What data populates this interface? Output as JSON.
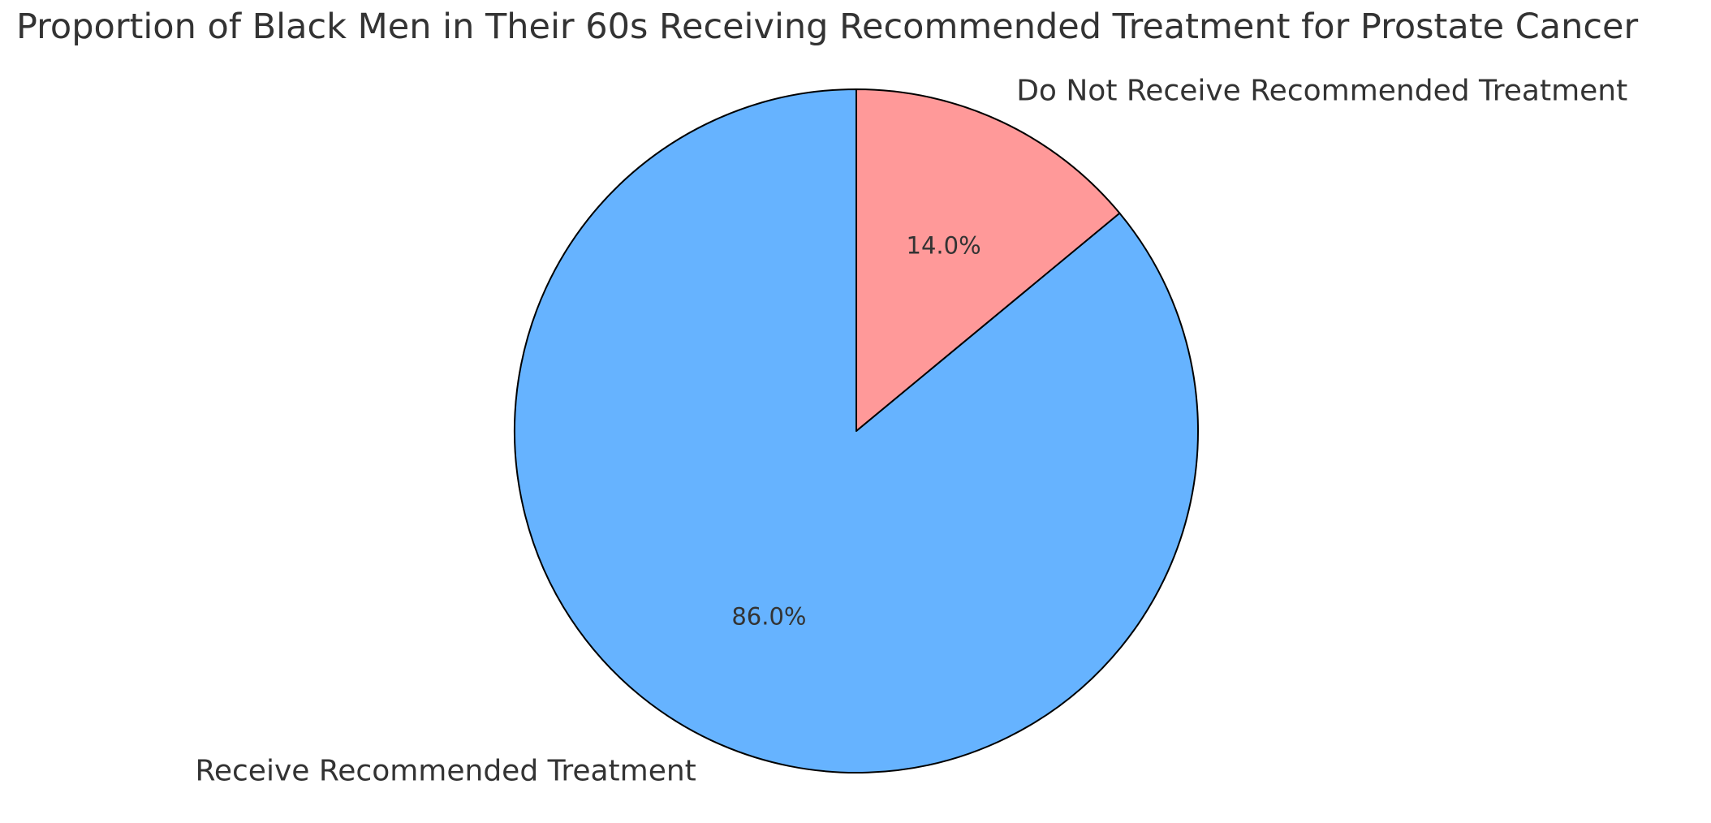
{
  "chart_data": {
    "type": "pie",
    "title": "Proportion of Black Men in Their 60s Receiving Recommended Treatment for Prostate Cancer",
    "slices": [
      {
        "label": "Receive Recommended Treatment",
        "value": 86.0,
        "percent_label": "86.0%",
        "color": "#66B3FF"
      },
      {
        "label": "Do Not Receive Recommended Treatment",
        "value": 14.0,
        "percent_label": "14.0%",
        "color": "#FF9999"
      }
    ],
    "start_angle": 90,
    "direction": "counterclockwise",
    "edge_color": "#000000",
    "edge_width": 2,
    "title_color": "#333333",
    "label_color": "#333333",
    "percent_color": "#333333",
    "background": "#FFFFFF",
    "legend_position": "none"
  }
}
